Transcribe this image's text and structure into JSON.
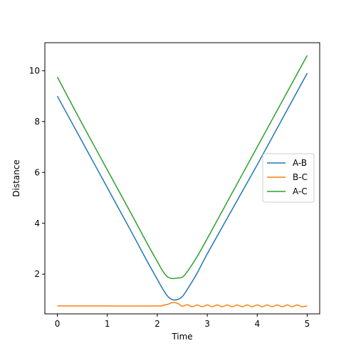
{
  "chart_data": {
    "type": "line",
    "title": "",
    "xlabel": "Time",
    "ylabel": "Distance",
    "xlim": [
      -0.25,
      5.25
    ],
    "ylim": [
      0.44,
      11.1
    ],
    "xticks": [
      0,
      1,
      2,
      3,
      4,
      5
    ],
    "xtick_labels": [
      "0",
      "1",
      "2",
      "3",
      "4",
      "5"
    ],
    "yticks": [
      2,
      4,
      6,
      8,
      10
    ],
    "ytick_labels": [
      "2",
      "4",
      "6",
      "8",
      "10"
    ],
    "grid": false,
    "legend_position": "center-right",
    "series": [
      {
        "name": "A-B",
        "color": "#1f77b4",
        "x": [
          0,
          0.5,
          1.0,
          1.5,
          1.8,
          2.0,
          2.1,
          2.2,
          2.3,
          2.4,
          2.5,
          2.6,
          2.8,
          3.0,
          3.5,
          4.0,
          4.5,
          5.0
        ],
        "y": [
          9.0,
          7.2,
          5.4,
          3.6,
          2.5,
          1.8,
          1.45,
          1.15,
          1.0,
          1.0,
          1.12,
          1.4,
          2.05,
          2.8,
          4.55,
          6.3,
          8.1,
          9.9
        ]
      },
      {
        "name": "B-C",
        "color": "#ff7f0e",
        "x": [
          0,
          1.0,
          2.0,
          2.1,
          2.2,
          2.3,
          2.4,
          2.5,
          2.6,
          2.7,
          2.8,
          2.9,
          3.0,
          3.1,
          3.2,
          3.3,
          3.4,
          3.5,
          3.6,
          3.7,
          3.8,
          3.9,
          4.0,
          4.1,
          4.2,
          4.3,
          4.4,
          4.5,
          4.6,
          4.7,
          4.8,
          4.9,
          5.0
        ],
        "y": [
          0.75,
          0.75,
          0.75,
          0.77,
          0.81,
          0.88,
          0.86,
          0.74,
          0.8,
          0.72,
          0.79,
          0.72,
          0.79,
          0.72,
          0.79,
          0.72,
          0.79,
          0.72,
          0.79,
          0.72,
          0.79,
          0.72,
          0.79,
          0.72,
          0.79,
          0.72,
          0.79,
          0.72,
          0.79,
          0.72,
          0.79,
          0.72,
          0.76
        ]
      },
      {
        "name": "A-C",
        "color": "#2ca02c",
        "x": [
          0,
          0.5,
          1.0,
          1.5,
          1.8,
          2.0,
          2.1,
          2.2,
          2.3,
          2.4,
          2.5,
          2.6,
          2.8,
          3.0,
          3.5,
          4.0,
          4.5,
          5.0
        ],
        "y": [
          9.75,
          7.9,
          6.1,
          4.3,
          3.2,
          2.5,
          2.15,
          1.9,
          1.83,
          1.85,
          1.88,
          2.1,
          2.7,
          3.4,
          5.2,
          7.0,
          8.8,
          10.6
        ]
      }
    ]
  }
}
